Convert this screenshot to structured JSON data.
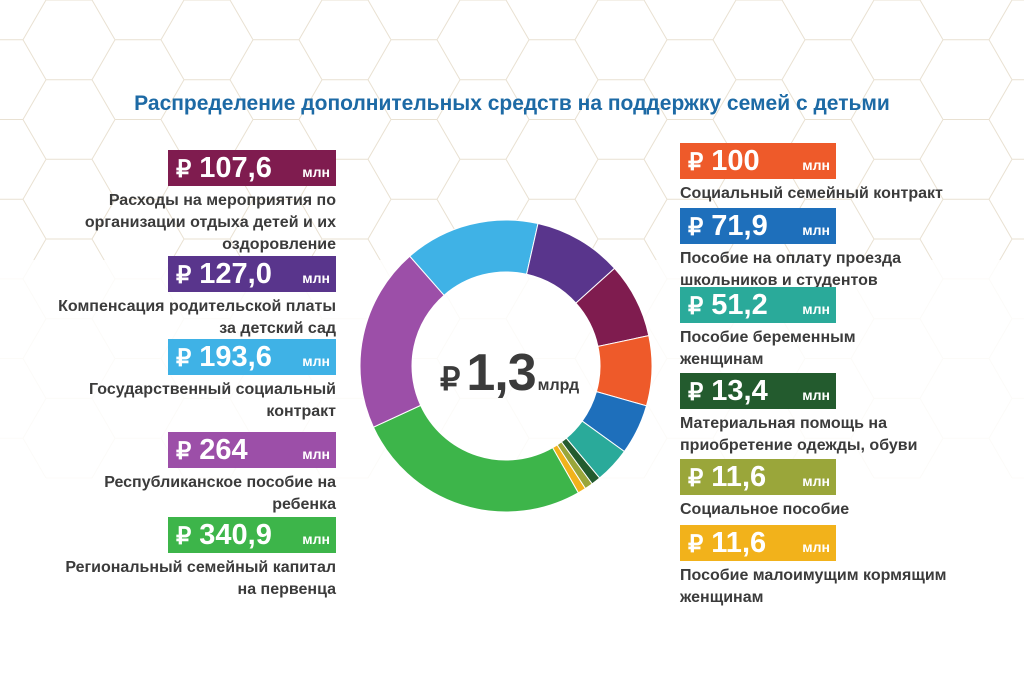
{
  "title": "Распределение дополнительных средств на поддержку семей с детьми",
  "center": {
    "currency": "₽",
    "value": "1,3",
    "unit": "млрд"
  },
  "left_items": [
    {
      "currency": "₽",
      "value": "107,6",
      "unit": "млн",
      "label_lines": [
        "Расходы на мероприятия по",
        "организации отдыха детей и их",
        "оздоровление"
      ],
      "color": "#7f1c4f"
    },
    {
      "currency": "₽",
      "value": "127,0",
      "unit": "млн",
      "label_lines": [
        "Компенсация родительской платы",
        "за детский сад"
      ],
      "color": "#59358c"
    },
    {
      "currency": "₽",
      "value": "193,6",
      "unit": "млн",
      "label_lines": [
        "Государственный социальный",
        "контракт"
      ],
      "color": "#3fb2e6"
    },
    {
      "currency": "₽",
      "value": "264",
      "unit": "млн",
      "label_lines": [
        "Республиканское пособие на",
        "ребенка"
      ],
      "color": "#9c4fa8"
    },
    {
      "currency": "₽",
      "value": "340,9",
      "unit": "млн",
      "label_lines": [
        "Региональный семейный капитал",
        "на первенца"
      ],
      "color": "#3db54a"
    }
  ],
  "right_items": [
    {
      "currency": "₽",
      "value": "100",
      "unit": "млн",
      "label_lines": [
        "Социальный семейный контракт"
      ],
      "color": "#ee5a2a"
    },
    {
      "currency": "₽",
      "value": "71,9",
      "unit": "млн",
      "label_lines": [
        "Пособие на оплату проезда",
        "школьников и студентов"
      ],
      "color": "#1e6fbb"
    },
    {
      "currency": "₽",
      "value": "51,2",
      "unit": "млн",
      "label_lines": [
        "Пособие беременным",
        "женщинам"
      ],
      "color": "#2aaa9a"
    },
    {
      "currency": "₽",
      "value": "13,4",
      "unit": "млн",
      "label_lines": [
        "Материальная помощь на",
        "приобретение одежды, обуви"
      ],
      "color": "#235b2e"
    },
    {
      "currency": "₽",
      "value": "11,6",
      "unit": "млн",
      "label_lines": [
        "Социальное пособие"
      ],
      "color": "#9aa63a"
    },
    {
      "currency": "₽",
      "value": "11,6",
      "unit": "млн",
      "label_lines": [
        "Пособие малоимущим кормящим",
        "женщинам"
      ],
      "color": "#f2b21b"
    }
  ],
  "chart_data": {
    "type": "pie",
    "title": "Распределение дополнительных средств на поддержку семей с детьми",
    "total_label": "1,3 млрд",
    "unit": "млн ₽",
    "slices": [
      {
        "name": "Государственный социальный контракт",
        "value": 193.6,
        "color": "#3fb2e6"
      },
      {
        "name": "Компенсация родительской платы за детский сад",
        "value": 127.0,
        "color": "#59358c"
      },
      {
        "name": "Расходы на мероприятия по организации отдыха детей и их оздоровление",
        "value": 107.6,
        "color": "#7f1c4f"
      },
      {
        "name": "Социальный семейный контракт",
        "value": 100,
        "color": "#ee5a2a"
      },
      {
        "name": "Пособие на оплату проезда школьников и студентов",
        "value": 71.9,
        "color": "#1e6fbb"
      },
      {
        "name": "Пособие беременным женщинам",
        "value": 51.2,
        "color": "#2aaa9a"
      },
      {
        "name": "Материальная помощь на приобретение одежды, обуви",
        "value": 13.4,
        "color": "#235b2e"
      },
      {
        "name": "Социальное пособие",
        "value": 11.6,
        "color": "#9aa63a"
      },
      {
        "name": "Пособие малоимущим кормящим женщинам",
        "value": 11.6,
        "color": "#f2b21b"
      },
      {
        "name": "Региональный семейный капитал на первенца",
        "value": 340.9,
        "color": "#3db54a"
      },
      {
        "name": "Республиканское пособие на ребенка",
        "value": 264,
        "color": "#9c4fa8"
      }
    ]
  }
}
